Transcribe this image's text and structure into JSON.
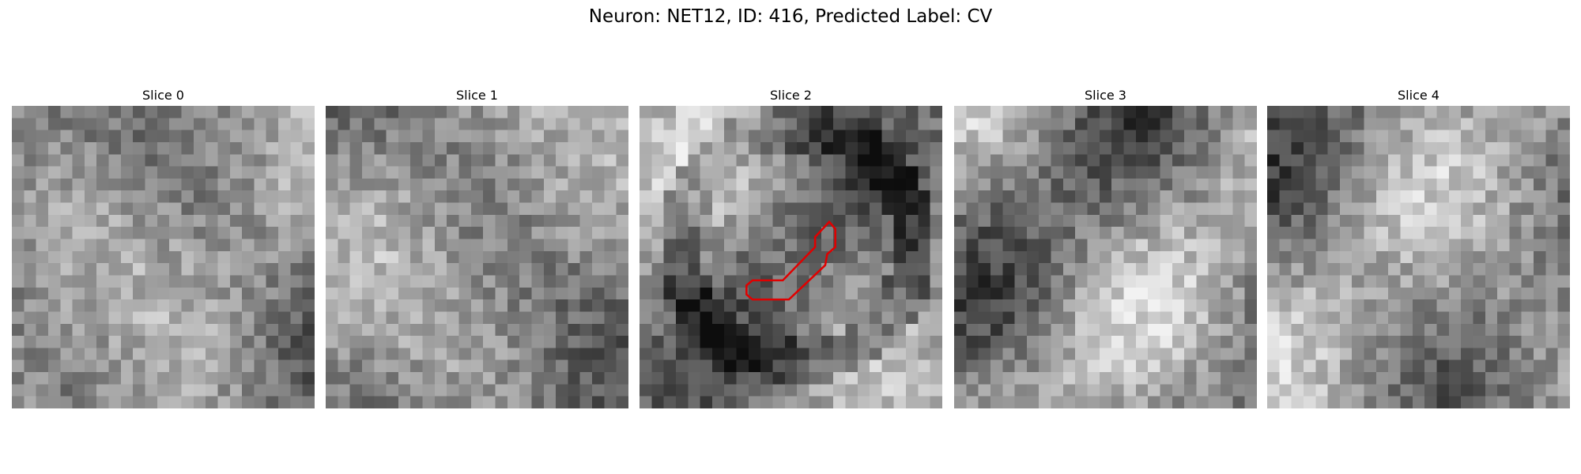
{
  "title": "Neuron: NET12, ID: 416, Predicted Label: CV",
  "panels": [
    {
      "title": "Slice 0"
    },
    {
      "title": "Slice 1"
    },
    {
      "title": "Slice 2"
    },
    {
      "title": "Slice 3"
    },
    {
      "title": "Slice 4"
    }
  ]
}
